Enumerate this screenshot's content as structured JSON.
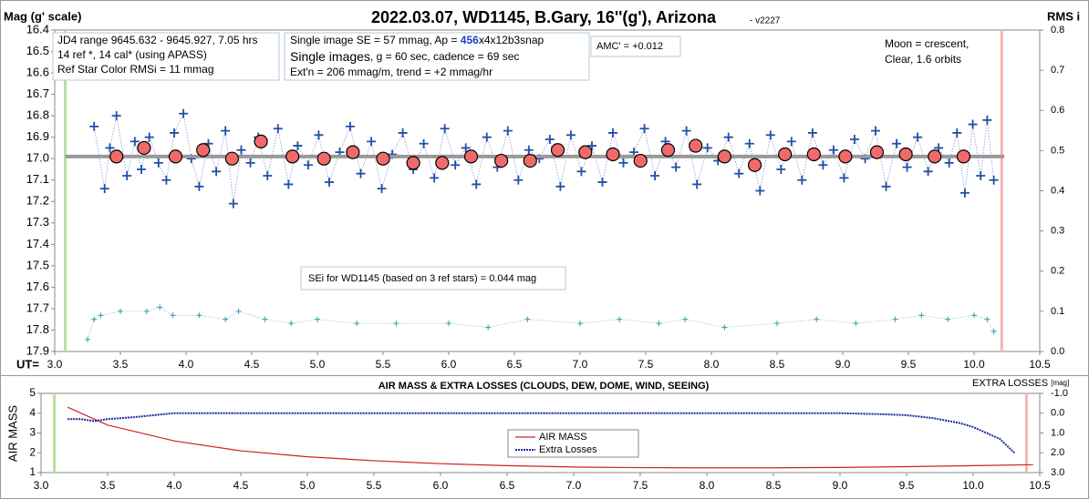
{
  "chart_data": [
    {
      "type": "scatter",
      "title": "2022.03.07, WD1145, B.Gary, 16''(g'), Arizona",
      "subtitle": " - v2227",
      "y_label": "Mag (g' scale)",
      "y2_label": "RMS i",
      "x_label": "UT=",
      "xlim": [
        3.0,
        10.5
      ],
      "xticks": [
        {
          "value": 3,
          "label": "3.0"
        },
        3.5,
        {
          "value": 4,
          "label": "4.0"
        },
        4.5,
        {
          "value": 5,
          "label": "5.0"
        },
        5.5,
        {
          "value": 6,
          "label": "6.0"
        },
        6.5,
        {
          "value": 7,
          "label": "7.0"
        },
        7.5,
        {
          "value": 8,
          "label": "8.0"
        },
        8.5,
        {
          "value": 9,
          "label": "9.0"
        },
        9.5,
        {
          "value": 10,
          "label": "10.0"
        },
        10.5
      ],
      "ylim": [
        16.4,
        17.9
      ],
      "y_reversed": true,
      "yticks": [
        16.4,
        16.5,
        16.6,
        16.7,
        16.8,
        16.9,
        {
          "value": 17,
          "label": "17.0"
        },
        17.1,
        17.2,
        17.3,
        17.4,
        17.5,
        17.6,
        17.7,
        17.8,
        17.9
      ],
      "y2lim": [
        0,
        0.8
      ],
      "y2ticks": [
        {
          "value": 0,
          "label": "0.0"
        },
        0.1,
        0.2,
        0.3,
        0.4,
        0.5,
        0.6,
        0.7,
        0.8
      ],
      "vlines": [
        {
          "x": 3.08,
          "color": "#b8e0a0"
        },
        {
          "x": 10.21,
          "color": "#f5b5b5"
        }
      ],
      "series": [
        {
          "color": "#2050a8",
          "marker": "plus",
          "line": "dotted",
          "size": 5,
          "x": [
            3.3,
            3.38,
            3.42,
            3.47,
            3.55,
            3.61,
            3.66,
            3.72,
            3.79,
            3.85,
            3.91,
            3.98,
            4.04,
            4.1,
            4.17,
            4.23,
            4.3,
            4.36,
            4.42,
            4.49,
            4.55,
            4.62,
            4.7,
            4.78,
            4.85,
            4.93,
            5.01,
            5.09,
            5.17,
            5.25,
            5.33,
            5.41,
            5.49,
            5.57,
            5.65,
            5.73,
            5.81,
            5.89,
            5.97,
            6.05,
            6.13,
            6.21,
            6.29,
            6.37,
            6.45,
            6.53,
            6.61,
            6.69,
            6.77,
            6.85,
            6.93,
            7.01,
            7.09,
            7.17,
            7.25,
            7.33,
            7.41,
            7.49,
            7.57,
            7.65,
            7.73,
            7.81,
            7.89,
            7.97,
            8.05,
            8.13,
            8.21,
            8.29,
            8.37,
            8.45,
            8.53,
            8.61,
            8.69,
            8.77,
            8.85,
            8.93,
            9.01,
            9.09,
            9.17,
            9.25,
            9.33,
            9.41,
            9.49,
            9.57,
            9.65,
            9.73,
            9.81,
            9.87,
            9.93,
            9.99,
            10.05,
            10.1,
            10.15
          ],
          "values": [
            16.85,
            17.14,
            16.95,
            16.8,
            17.08,
            16.92,
            17.05,
            16.9,
            17.02,
            17.1,
            16.88,
            16.79,
            17.0,
            17.13,
            16.93,
            17.06,
            16.87,
            17.21,
            16.96,
            17.02,
            16.9,
            17.08,
            16.86,
            17.12,
            16.94,
            17.03,
            16.89,
            17.11,
            16.97,
            16.85,
            17.07,
            16.92,
            17.14,
            16.98,
            16.88,
            17.05,
            16.93,
            17.09,
            16.86,
            17.03,
            16.95,
            17.12,
            16.9,
            17.04,
            16.87,
            17.1,
            16.96,
            17.0,
            16.91,
            17.13,
            16.89,
            17.06,
            16.94,
            17.11,
            16.88,
            17.02,
            16.97,
            16.86,
            17.08,
            16.92,
            17.04,
            16.87,
            17.12,
            16.95,
            17.01,
            16.9,
            17.07,
            16.93,
            17.15,
            16.89,
            17.05,
            16.92,
            17.1,
            16.88,
            17.03,
            16.96,
            17.09,
            16.91,
            17.0,
            16.87,
            17.13,
            16.93,
            17.04,
            16.9,
            17.06,
            16.95,
            17.02,
            16.88,
            17.16,
            16.84,
            17.08,
            16.82,
            17.1
          ]
        },
        {
          "color": "#999999",
          "marker": "none",
          "line": "thick",
          "size": 4,
          "x": [
            3.08,
            10.23
          ],
          "values": [
            16.99,
            16.99
          ]
        },
        {
          "color": "#f06a6a",
          "marker": "circle",
          "line": "none",
          "size": 7,
          "x": [
            3.47,
            3.68,
            3.92,
            4.13,
            4.35,
            4.57,
            4.81,
            5.05,
            5.27,
            5.5,
            5.73,
            5.95,
            6.17,
            6.4,
            6.62,
            6.83,
            7.04,
            7.25,
            7.46,
            7.67,
            7.88,
            8.1,
            8.33,
            8.56,
            8.78,
            9.02,
            9.26,
            9.48,
            9.7,
            9.92
          ],
          "values": [
            16.99,
            16.95,
            16.99,
            16.96,
            17.0,
            16.92,
            16.99,
            17.0,
            16.97,
            17.0,
            17.02,
            17.02,
            16.99,
            17.01,
            17.01,
            16.96,
            16.97,
            16.98,
            17.01,
            16.96,
            16.94,
            16.99,
            17.03,
            16.98,
            16.98,
            16.99,
            16.97,
            16.98,
            16.99,
            16.99
          ]
        },
        {
          "color": "#40a0b0",
          "marker": "plus",
          "line": "dotted",
          "size": 3,
          "axis": "y2",
          "x": [
            3.25,
            3.3,
            3.35,
            3.5,
            3.7,
            3.8,
            3.9,
            4.1,
            4.3,
            4.4,
            4.6,
            4.8,
            5.0,
            5.3,
            5.6,
            6.0,
            6.3,
            6.6,
            7.0,
            7.3,
            7.6,
            7.8,
            8.1,
            8.5,
            8.8,
            9.1,
            9.4,
            9.6,
            9.8,
            10.0,
            10.1,
            10.15
          ],
          "values": [
            0.03,
            0.08,
            0.09,
            0.1,
            0.1,
            0.11,
            0.09,
            0.09,
            0.08,
            0.1,
            0.08,
            0.07,
            0.08,
            0.07,
            0.07,
            0.07,
            0.06,
            0.08,
            0.07,
            0.08,
            0.07,
            0.08,
            0.06,
            0.07,
            0.08,
            0.07,
            0.08,
            0.09,
            0.08,
            0.09,
            0.08,
            0.05
          ]
        }
      ],
      "notes": {
        "info": [
          "JD4 range 9645.632 - 9645.927, 7.05 hrs",
          "14 ref *, 14 cal* (using APASS)",
          "Ref Star Color RMSi = 11 mmag"
        ],
        "settings_1": [
          "Single image SE = 57 mmag, Ap = ",
          "456",
          "x4x12b3snap"
        ],
        "settings_2": [
          "Single images",
          ", g = 60 sec, cadence = 69 sec"
        ],
        "settings_3": "Ext'n = 206 mmag/m, trend = +2 mmag/hr",
        "amc": "AMC' = +0.012",
        "moon": [
          "Moon = crescent,",
          "Clear,  1.6 orbits"
        ],
        "sei": "SEi for WD1145 (based on 3 ref stars) = 0.044 mag"
      }
    },
    {
      "type": "line",
      "title": "AIR MASS & EXTRA LOSSES (CLOUDS, DEW, DOME, WIND, SEEING)",
      "y_label": "AIR MASS",
      "y2_label": [
        "EXTRA LOSSES",
        "[mag]"
      ],
      "xlim": [
        3.0,
        10.5
      ],
      "xticks": [
        {
          "value": 3,
          "label": "3.0"
        },
        3.5,
        {
          "value": 4,
          "label": "4.0"
        },
        4.5,
        {
          "value": 5,
          "label": "5.0"
        },
        5.5,
        {
          "value": 6,
          "label": "6.0"
        },
        6.5,
        {
          "value": 7,
          "label": "7.0"
        },
        7.5,
        {
          "value": 8,
          "label": "8.0"
        },
        8.5,
        {
          "value": 9,
          "label": "9.0"
        },
        9.5,
        {
          "value": 10,
          "label": "10.0"
        },
        10.5
      ],
      "ylim": [
        1,
        5
      ],
      "yticks": [
        1,
        2,
        3,
        4,
        5
      ],
      "y2lim": [
        -1,
        3
      ],
      "y2_reversed": true,
      "y2ticks": [
        {
          "value": -1,
          "label": "-1.0"
        },
        {
          "value": 0,
          "label": "0.0"
        },
        {
          "value": 1,
          "label": "1.0"
        },
        {
          "value": 2,
          "label": "2.0"
        },
        {
          "value": 3,
          "label": "3.0"
        }
      ],
      "vlines": [
        {
          "x": 3.1,
          "color": "#b8e0a0"
        },
        {
          "x": 10.4,
          "color": "#f5b5b5"
        }
      ],
      "series": [
        {
          "name": "AIR MASS",
          "color": "#d02020",
          "marker": "none",
          "line": "solid",
          "size": 1,
          "x": [
            3.2,
            3.5,
            4.0,
            4.5,
            5.0,
            5.5,
            6.0,
            6.5,
            7.0,
            7.5,
            8.0,
            8.5,
            9.0,
            9.5,
            10.0,
            10.45
          ],
          "values": [
            4.3,
            3.4,
            2.6,
            2.1,
            1.8,
            1.6,
            1.45,
            1.35,
            1.28,
            1.25,
            1.24,
            1.24,
            1.26,
            1.3,
            1.35,
            1.4
          ]
        },
        {
          "name": "Extra Losses",
          "color": "#1a2aa0",
          "marker": "none",
          "line": "dotted",
          "size": 2,
          "axis": "y2",
          "x": [
            3.2,
            3.3,
            3.4,
            3.5,
            3.7,
            4.0,
            5,
            6,
            7,
            8,
            9,
            9.3,
            9.5,
            9.7,
            9.9,
            10.0,
            10.1,
            10.2,
            10.31
          ],
          "values": [
            0.3,
            0.3,
            0.4,
            0.3,
            0.2,
            0.0,
            0.0,
            0.0,
            0.0,
            0.0,
            0.0,
            0.05,
            0.1,
            0.25,
            0.5,
            0.7,
            1.0,
            1.3,
            2.0
          ]
        }
      ]
    }
  ]
}
